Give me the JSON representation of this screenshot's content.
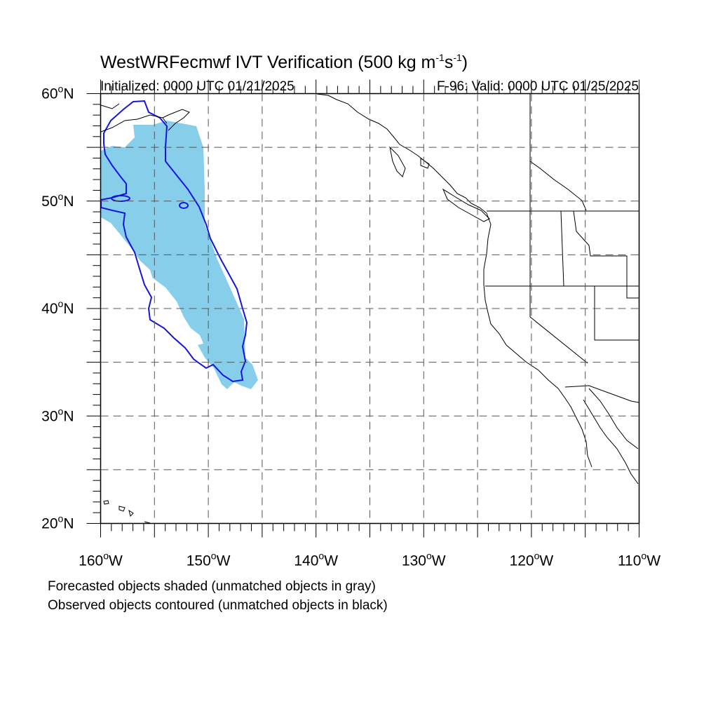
{
  "title": {
    "main": "WestWRFecmwf IVT Verification (500 kg m",
    "sup1": "-1",
    "mid": "s",
    "sup2": "-1",
    "end": ")"
  },
  "initialized": "Initialized: 0000 UTC 01/21/2025",
  "valid": "F-96: Valid: 0000 UTC 01/25/2025",
  "lat_labels": [
    {
      "deg": "60",
      "hemi": "N",
      "value": 60
    },
    {
      "deg": "50",
      "hemi": "N",
      "value": 50
    },
    {
      "deg": "40",
      "hemi": "N",
      "value": 40
    },
    {
      "deg": "30",
      "hemi": "N",
      "value": 30
    },
    {
      "deg": "20",
      "hemi": "N",
      "value": 20
    }
  ],
  "lon_labels": [
    {
      "deg": "160",
      "hemi": "W",
      "value": -160
    },
    {
      "deg": "150",
      "hemi": "W",
      "value": -150
    },
    {
      "deg": "140",
      "hemi": "W",
      "value": -140
    },
    {
      "deg": "130",
      "hemi": "W",
      "value": -130
    },
    {
      "deg": "120",
      "hemi": "W",
      "value": -120
    },
    {
      "deg": "110",
      "hemi": "W",
      "value": -110
    }
  ],
  "caption_line1": "Forecasted objects shaded (unmatched objects in gray)",
  "caption_line2": "Observed objects contoured (unmatched objects in black)",
  "extent": {
    "lon": [
      -160,
      -110
    ],
    "lat": [
      20,
      60
    ]
  },
  "grid_interval_deg": 5,
  "colors": {
    "forecast_fill": "#87ceeb",
    "observed_contour": "#1515e0",
    "coastline": "#000000",
    "grid": "#555555"
  }
}
